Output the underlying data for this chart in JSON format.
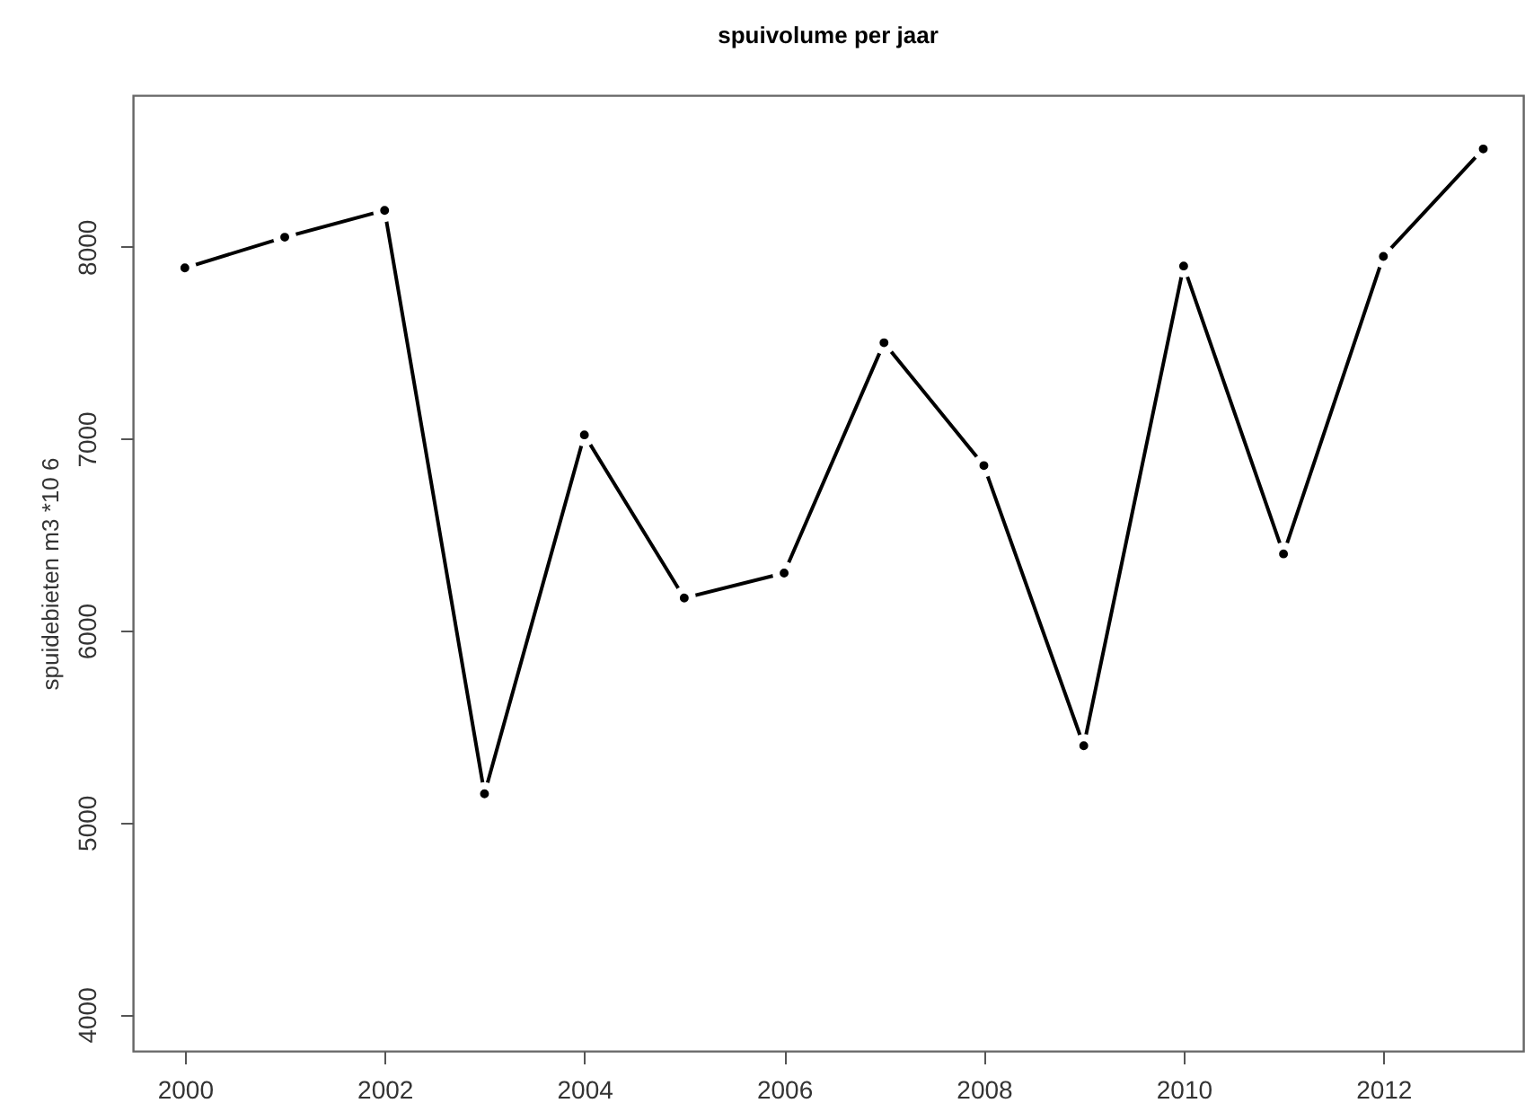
{
  "chart_data": {
    "type": "line",
    "title": "spuivolume per jaar",
    "ylabel": "spuidebieten m3 *10 6",
    "x": [
      2000,
      2001,
      2002,
      2003,
      2004,
      2005,
      2006,
      2007,
      2008,
      2009,
      2010,
      2011,
      2012,
      2013
    ],
    "values": [
      7890,
      8050,
      8190,
      5150,
      7020,
      6170,
      6300,
      7500,
      6860,
      5400,
      7900,
      6400,
      7950,
      8510
    ],
    "color": "#000000",
    "marker": "circle",
    "xlim": [
      1999.48,
      2013.4
    ],
    "ylim": [
      3810,
      8790
    ],
    "xticks": [
      2000,
      2002,
      2004,
      2006,
      2008,
      2010,
      2012
    ],
    "yticks": [
      4000,
      5000,
      6000,
      7000,
      8000
    ]
  }
}
